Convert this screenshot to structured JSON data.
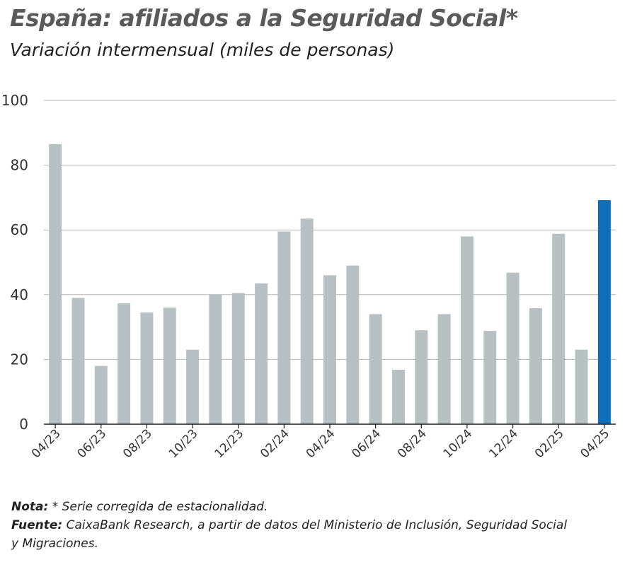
{
  "chart_data": {
    "type": "bar",
    "title": "España: afiliados a la Seguridad Social*",
    "subtitle": "Variación intermensual (miles de personas)",
    "xlabel": "",
    "ylabel": "",
    "ylim": [
      0,
      100
    ],
    "yticks": [
      0,
      20,
      40,
      60,
      80,
      100
    ],
    "grid": true,
    "categories": [
      "04/23",
      "05/23",
      "06/23",
      "07/23",
      "08/23",
      "09/23",
      "10/23",
      "11/23",
      "12/23",
      "01/24",
      "02/24",
      "03/24",
      "04/24",
      "05/24",
      "06/24",
      "07/24",
      "08/24",
      "09/24",
      "10/24",
      "11/24",
      "12/24",
      "01/25",
      "02/25",
      "03/25",
      "04/25"
    ],
    "xtick_labels": [
      "04/23",
      "06/23",
      "08/23",
      "10/23",
      "12/23",
      "02/24",
      "04/24",
      "06/24",
      "08/24",
      "10/24",
      "12/24",
      "02/25",
      "04/25"
    ],
    "values": [
      86.5,
      39,
      18,
      37.3,
      34.5,
      36,
      23,
      40,
      40.5,
      43.5,
      59.5,
      63.5,
      46,
      49,
      34,
      16.8,
      29,
      34,
      58,
      28.8,
      46.8,
      35.8,
      58.8,
      23,
      69.2
    ],
    "colors": {
      "default": "#b7c1c3",
      "highlight": "#0f6fb8",
      "axis": "#1a1a1a",
      "grid": "#b5b5b5"
    },
    "highlight_index": 24
  },
  "notes": {
    "note_label": "Nota:",
    "note_text": " * Serie corregida de estacionalidad.",
    "source_label": "Fuente:",
    "source_text": " CaixaBank Research, a partir de datos del Ministerio de Inclusión, Seguridad Social",
    "source_text_2": " y Migraciones."
  }
}
